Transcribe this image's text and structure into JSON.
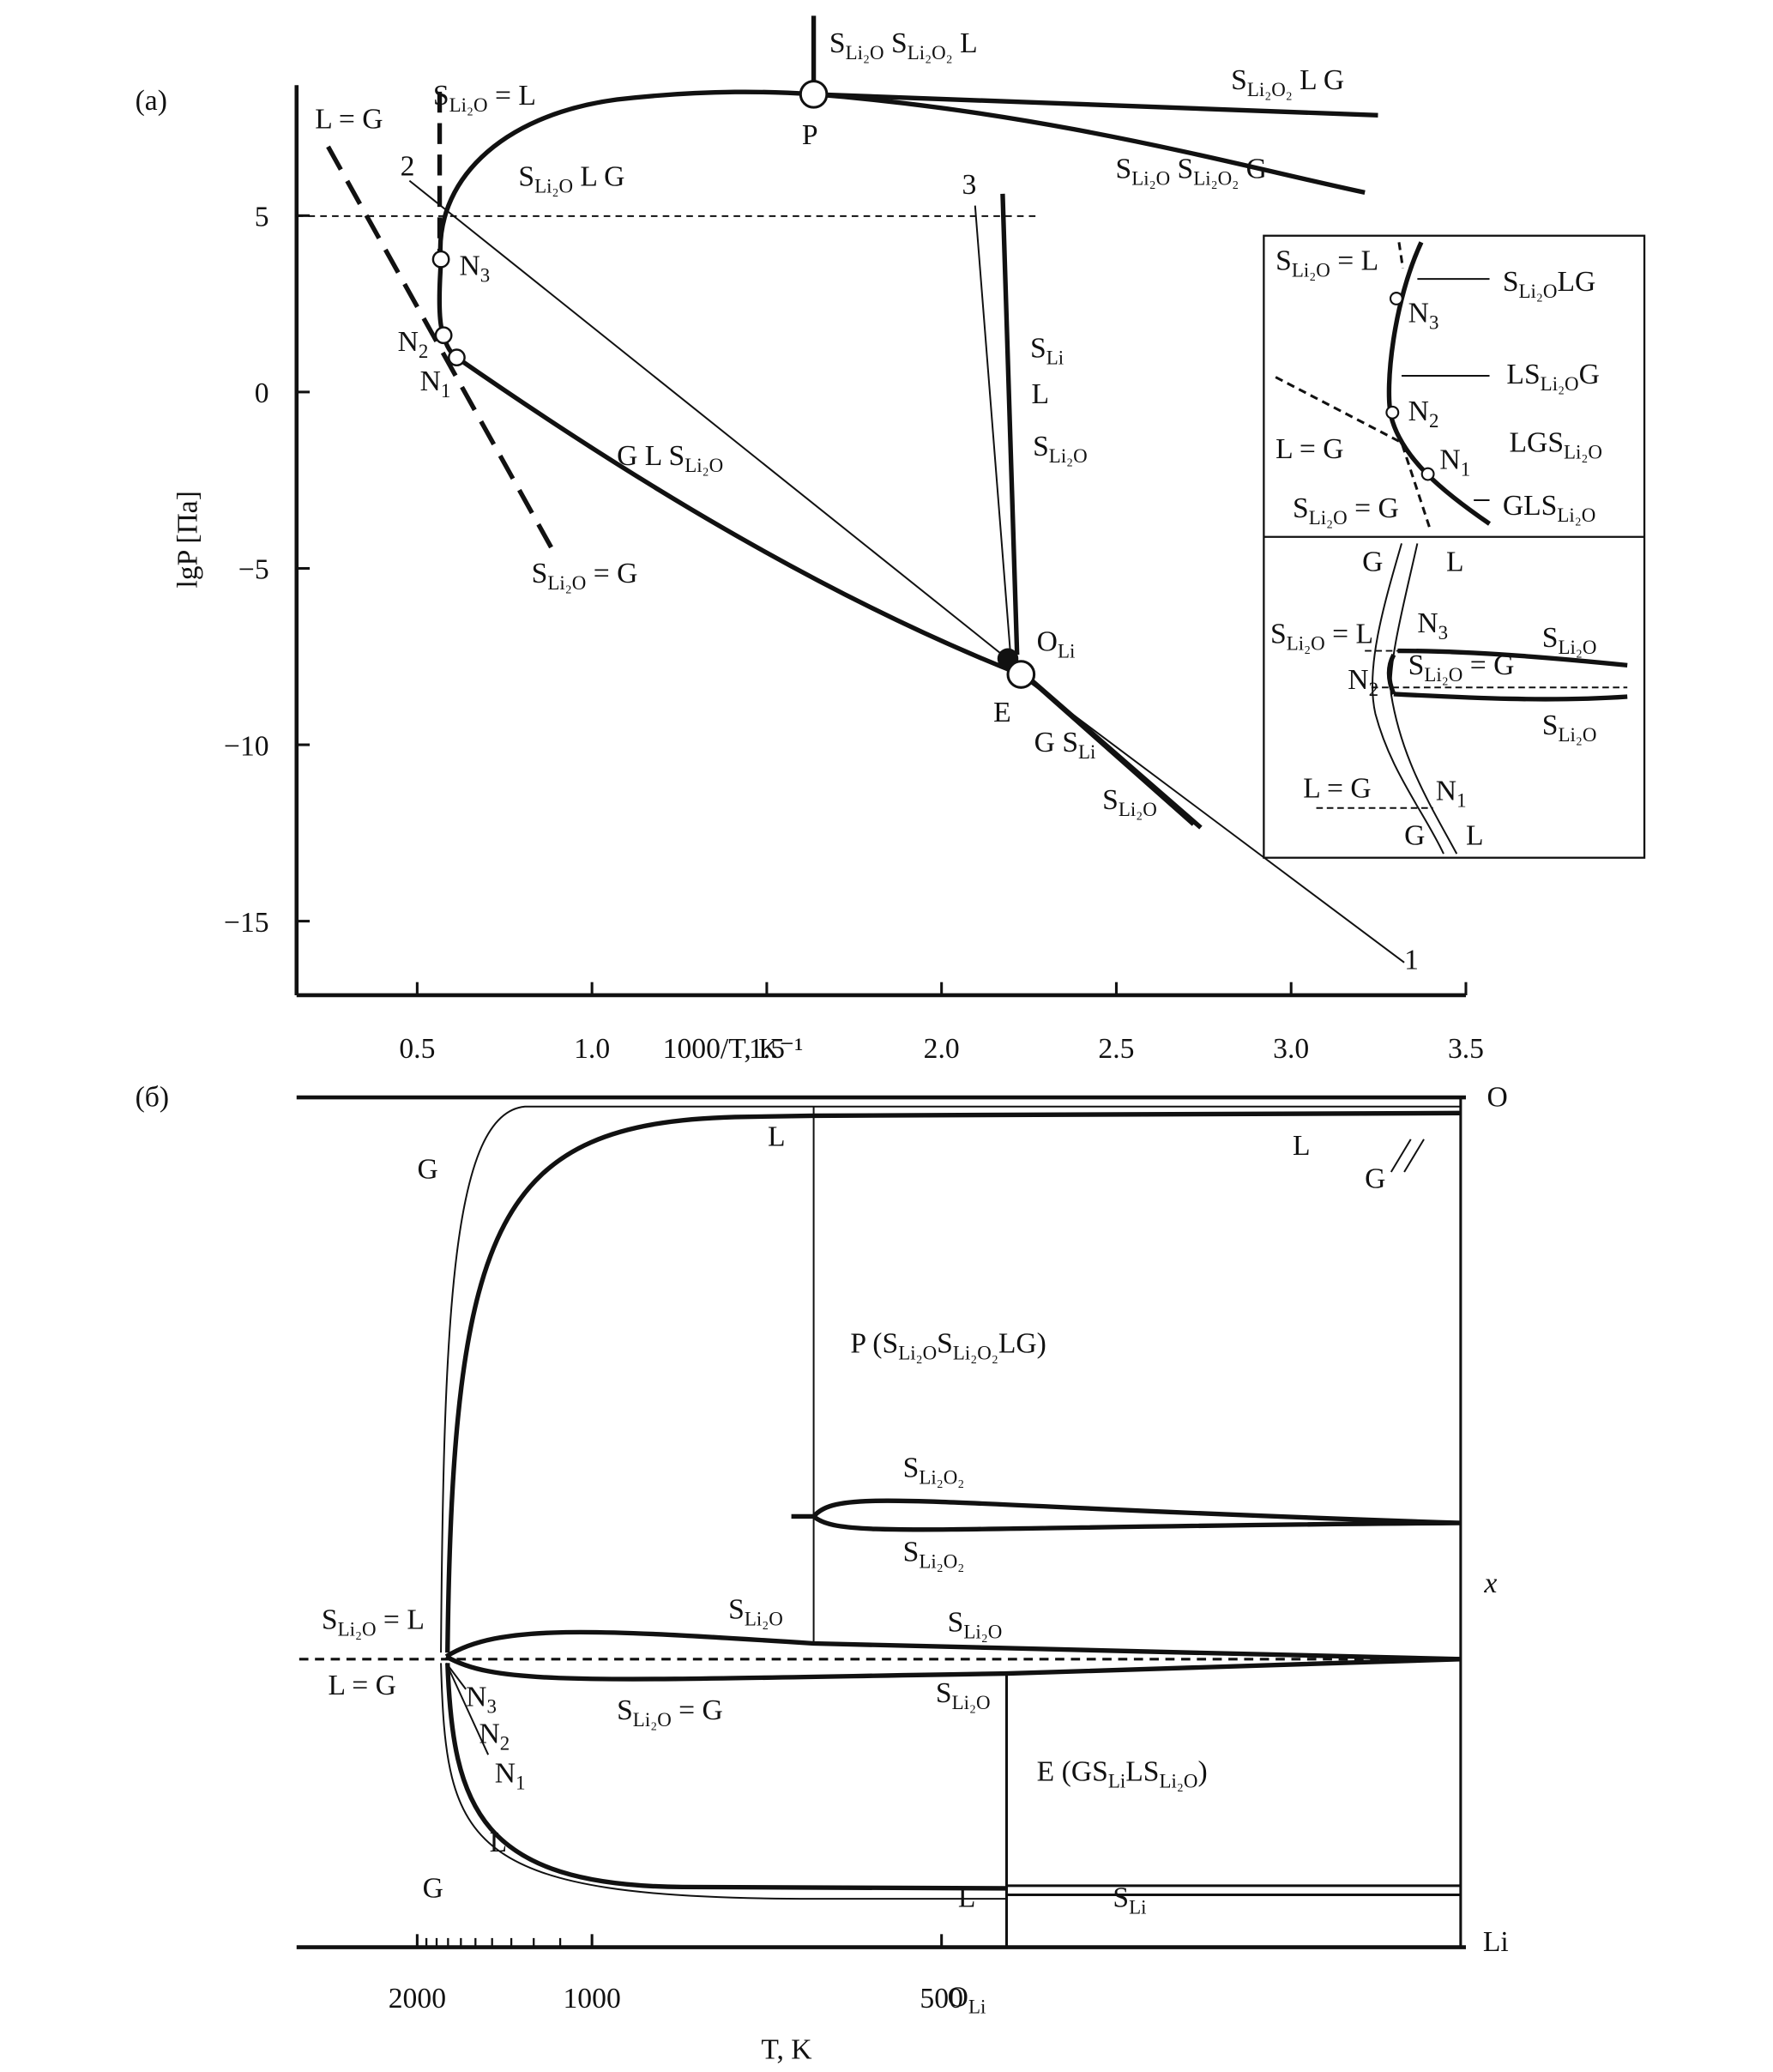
{
  "panel_a": {
    "label": "(a)",
    "y_label": "lgP [Па]",
    "x_label": "1000/T, K⁻¹",
    "xlim": [
      0.155,
      3.5
    ],
    "ylim": [
      -17.1,
      8.7
    ],
    "xticks": [
      0.5,
      {
        "value": 1,
        "label": "1.0"
      },
      1.5,
      {
        "value": 2,
        "label": "2.0"
      },
      2.5,
      {
        "value": 3,
        "label": "3.0"
      },
      3.5
    ],
    "yticks": [
      5,
      0,
      {
        "value": -5,
        "label": "−5"
      },
      {
        "value": -10,
        "label": "−10"
      },
      {
        "value": -15,
        "label": "−15"
      }
    ],
    "labels": [
      [
        "S",
        "Li₂O",
        "  S",
        "Li₂O₂",
        "  L"
      ],
      [
        "P"
      ],
      [
        "S",
        "Li₂O₂",
        "  L  G"
      ],
      [
        "S",
        "Li₂O",
        " = L"
      ],
      [
        "L = G"
      ],
      [
        "2"
      ],
      [
        "S",
        "Li₂O",
        "    L    G"
      ],
      [
        "S",
        "Li₂O",
        "    S",
        "Li₂O₂",
        "    G"
      ],
      [
        "3"
      ],
      [
        "N",
        "3"
      ],
      [
        "N",
        "2"
      ],
      [
        "N",
        "1"
      ],
      [
        "S",
        "Li"
      ],
      [
        "L"
      ],
      [
        "S",
        "Li₂O"
      ],
      [
        "G    L    S",
        "Li₂O"
      ],
      [
        "S",
        "Li₂O",
        " = G"
      ],
      [
        "O",
        "Li"
      ],
      [
        "E"
      ],
      [
        "G   S",
        "Li"
      ],
      [
        "S",
        "Li₂O"
      ],
      [
        "1"
      ]
    ],
    "inset_labels": [
      [
        "S",
        "Li₂O",
        " = L"
      ],
      [
        "S",
        "Li₂O",
        "LG"
      ],
      [
        "N",
        "3"
      ],
      [
        "LS",
        "Li₂O",
        "G"
      ],
      [
        "N",
        "2"
      ],
      [
        "LGS",
        "Li₂O"
      ],
      [
        "L = G"
      ],
      [
        "N",
        "1"
      ],
      [
        "S",
        "Li₂O",
        " = G"
      ],
      [
        "GLS",
        "Li₂O"
      ],
      [
        "G"
      ],
      [
        "L"
      ],
      [
        "S",
        "Li₂O",
        " = L"
      ],
      [
        "N",
        "3"
      ],
      [
        "S",
        "Li₂O"
      ],
      [
        "N",
        "2"
      ],
      [
        "S",
        "Li₂O",
        " = G"
      ],
      [
        "S",
        "Li₂O"
      ],
      [
        "L = G"
      ],
      [
        "N",
        "1"
      ],
      [
        "G"
      ],
      [
        "L"
      ]
    ]
  },
  "panel_b": {
    "label": "(б)",
    "x_label": "T, K",
    "tticks": [
      2000,
      1000,
      500
    ],
    "minor_tticks": [
      1900,
      1800,
      1700,
      1600,
      1500,
      1400,
      1300,
      1200,
      1100
    ],
    "labels": [
      [
        "O"
      ],
      [
        "x"
      ],
      [
        "Li"
      ],
      [
        "L"
      ],
      [
        "L"
      ],
      [
        "G"
      ],
      [
        "G"
      ],
      [
        "P (S",
        "Li₂O",
        "S",
        "Li₂O₂",
        "LG)"
      ],
      [
        "S",
        "Li₂O₂"
      ],
      [
        "S",
        "Li₂O₂"
      ],
      [
        "S",
        "Li₂O",
        " = L"
      ],
      [
        "S",
        "Li₂O"
      ],
      [
        "S",
        "Li₂O"
      ],
      [
        "L = G"
      ],
      [
        "S",
        "Li₂O",
        " = G"
      ],
      [
        "S",
        "Li₂O"
      ],
      [
        "N",
        "3"
      ],
      [
        "N",
        "2"
      ],
      [
        "N",
        "1"
      ],
      [
        "E (GS",
        "Li",
        "LS",
        "Li₂O",
        ")"
      ],
      [
        "L"
      ],
      [
        "G"
      ],
      [
        "L"
      ],
      [
        "S",
        "Li"
      ],
      [
        "O",
        "Li"
      ]
    ]
  }
}
